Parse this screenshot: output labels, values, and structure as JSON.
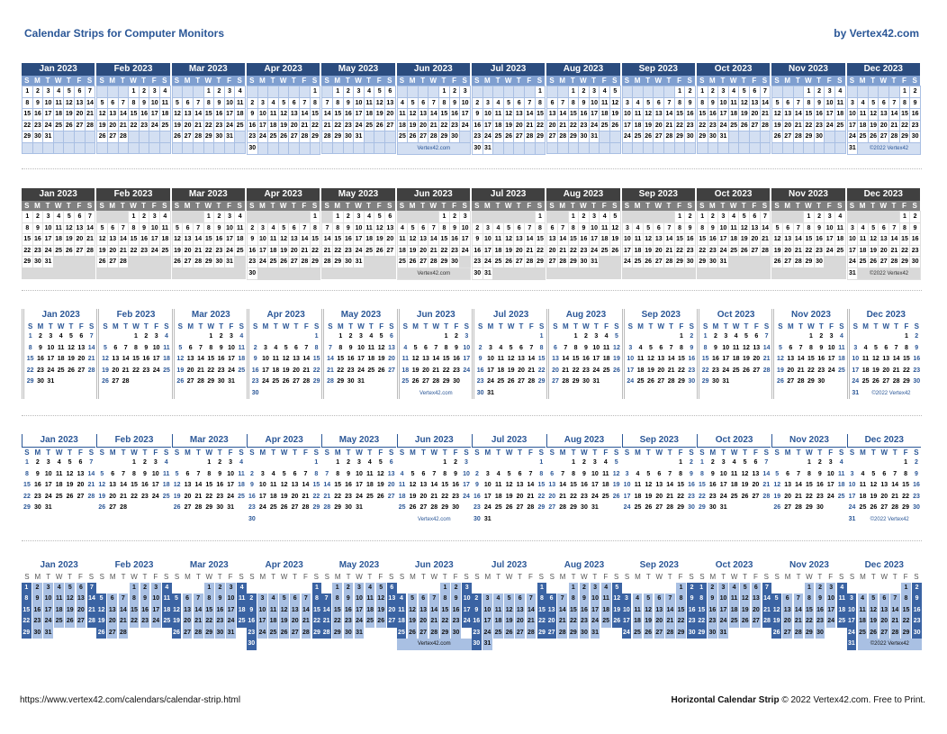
{
  "header": {
    "title": "Calendar Strips for Computer Monitors",
    "byline": "by Vertex42.com"
  },
  "weekdays": [
    "S",
    "M",
    "T",
    "W",
    "T",
    "F",
    "S"
  ],
  "months": [
    {
      "label": "Jan 2023",
      "start_weekday": 0,
      "days": 31
    },
    {
      "label": "Feb 2023",
      "start_weekday": 3,
      "days": 28
    },
    {
      "label": "Mar 2023",
      "start_weekday": 3,
      "days": 31
    },
    {
      "label": "Apr 2023",
      "start_weekday": 6,
      "days": 30
    },
    {
      "label": "May 2023",
      "start_weekday": 1,
      "days": 31
    },
    {
      "label": "Jun 2023",
      "start_weekday": 4,
      "days": 30
    },
    {
      "label": "Jul 2023",
      "start_weekday": 6,
      "days": 31
    },
    {
      "label": "Aug 2023",
      "start_weekday": 2,
      "days": 31
    },
    {
      "label": "Sep 2023",
      "start_weekday": 5,
      "days": 30
    },
    {
      "label": "Oct 2023",
      "start_weekday": 0,
      "days": 31
    },
    {
      "label": "Nov 2023",
      "start_weekday": 3,
      "days": 30
    },
    {
      "label": "Dec 2023",
      "start_weekday": 5,
      "days": 31
    }
  ],
  "notes": {
    "june": "Vertex42.com",
    "december": "©2022 Vertex42"
  },
  "strips": [
    {
      "style": "s1",
      "theme": "blue-table"
    },
    {
      "style": "s2",
      "theme": "gray-table"
    },
    {
      "style": "s3",
      "theme": "double-line-dividers"
    },
    {
      "style": "s4",
      "theme": "underlined-headers"
    },
    {
      "style": "s5",
      "theme": "blue-tiles"
    }
  ],
  "colors": {
    "accent": "#2b5797",
    "header_blue": "#2b4c7e",
    "header_gray": "#404040",
    "tile_weekend": "#3a63a3",
    "tile_weekday": "#a9c0e3"
  },
  "footer": {
    "url": "https://www.vertex42.com/calendars/calendar-strip.html",
    "product": "Horizontal Calendar Strip",
    "copyright": " © 2022 Vertex42.com. Free to Print."
  }
}
